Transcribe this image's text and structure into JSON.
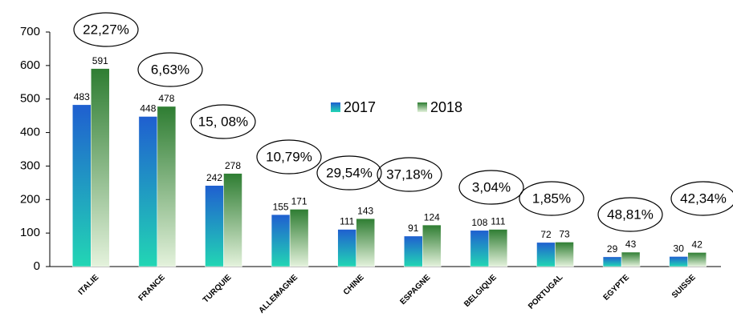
{
  "chart_data": {
    "type": "bar",
    "categories": [
      "ITALIE",
      "FRANCE",
      "TURQUIE",
      "ALLEMAGNE",
      "CHINE",
      "ESPAGNE",
      "BELGIQUE",
      "PORTUGAL",
      "EGYPTE",
      "SUISSE"
    ],
    "series": [
      {
        "name": "2017",
        "color": "#1f5fd0",
        "values": [
          483,
          448,
          242,
          155,
          111,
          91,
          108,
          72,
          29,
          30
        ]
      },
      {
        "name": "2018",
        "color": "#2e7d32",
        "values": [
          591,
          478,
          278,
          171,
          143,
          124,
          111,
          73,
          43,
          42
        ]
      }
    ],
    "annotations": [
      "22,27%",
      "6,63%",
      "15, 08%",
      "10,79%",
      "29,54%",
      "37,18%",
      "3,04%",
      "1,85%",
      "48,81%",
      "42,34%"
    ],
    "ylim": [
      0,
      700
    ],
    "yticks": [
      0,
      100,
      200,
      300,
      400,
      500,
      600,
      700
    ]
  }
}
